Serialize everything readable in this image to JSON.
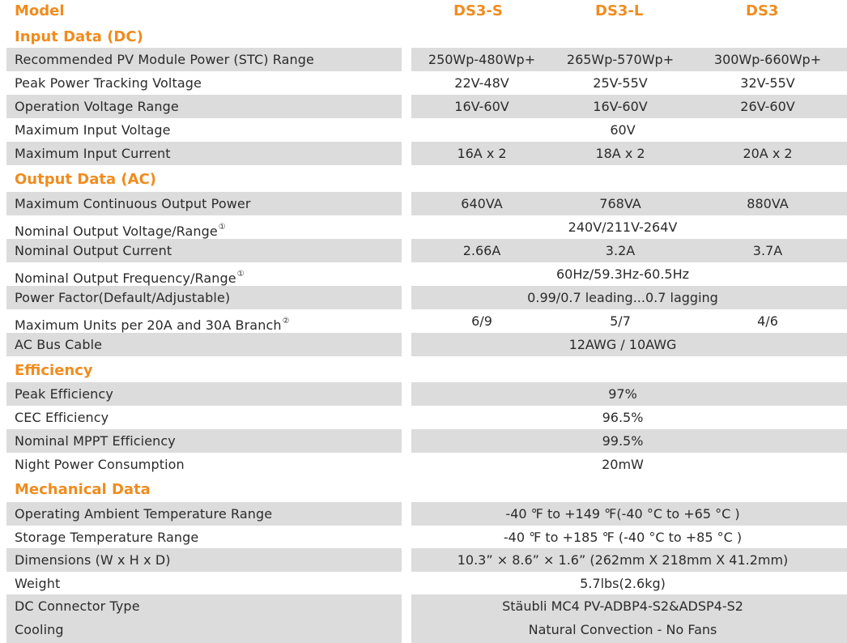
{
  "header": {
    "model_label": "Model",
    "models": [
      "DS3-S",
      "DS3-L",
      "DS3"
    ]
  },
  "sections": [
    {
      "title": "Input Data (DC)",
      "rows": [
        {
          "label": "Recommended PV Module Power (STC) Range",
          "values": [
            "250Wp-480Wp+",
            "265Wp-570Wp+",
            "300Wp-660Wp+"
          ]
        },
        {
          "label": "Peak Power Tracking Voltage",
          "values": [
            "22V-48V",
            "25V-55V",
            "32V-55V"
          ]
        },
        {
          "label": "Operation Voltage Range",
          "values": [
            "16V-60V",
            "16V-60V",
            "26V-60V"
          ]
        },
        {
          "label": "Maximum Input Voltage",
          "values": [
            "60V"
          ]
        },
        {
          "label": "Maximum Input Current",
          "values": [
            "16A x 2",
            "18A x 2",
            "20A x 2"
          ]
        }
      ]
    },
    {
      "title": "Output Data (AC)",
      "rows": [
        {
          "label": "Maximum Continuous Output Power",
          "values": [
            "640VA",
            "768VA",
            "880VA"
          ]
        },
        {
          "label": "Nominal Output Voltage/Range",
          "note": "①",
          "values": [
            "240V/211V-264V"
          ]
        },
        {
          "label": "Nominal Output Current",
          "values": [
            "2.66A",
            "3.2A",
            "3.7A"
          ]
        },
        {
          "label": "Nominal Output Frequency/Range",
          "note": "①",
          "values": [
            "60Hz/59.3Hz-60.5Hz"
          ]
        },
        {
          "label": "Power Factor(Default/Adjustable)",
          "values": [
            "0.99/0.7 leading...0.7 lagging"
          ]
        },
        {
          "label": "Maximum Units per 20A and 30A Branch",
          "note": "②",
          "values": [
            "6/9",
            "5/7",
            "4/6"
          ]
        },
        {
          "label": "AC Bus Cable",
          "values": [
            "12AWG / 10AWG"
          ]
        }
      ]
    },
    {
      "title": "Efficiency",
      "rows": [
        {
          "label": "Peak Efficiency",
          "values": [
            "97%"
          ]
        },
        {
          "label": "CEC Efficiency",
          "values": [
            "96.5%"
          ]
        },
        {
          "label": "Nominal MPPT Efficiency",
          "values": [
            "99.5%"
          ]
        },
        {
          "label": "Night Power Consumption",
          "values": [
            "20mW"
          ]
        }
      ]
    },
    {
      "title": "Mechanical Data",
      "rows": [
        {
          "label": "Operating Ambient Temperature Range",
          "values": [
            "-40 ℉ to +149 ℉(-40 °C to +65 °C )"
          ]
        },
        {
          "label": "Storage Temperature Range",
          "values": [
            "-40 ℉ to +185 ℉ (-40 °C to +85 °C )"
          ]
        },
        {
          "label": "Dimensions (W x H x D)",
          "values": [
            "10.3” × 8.6” × 1.6” (262mm X 218mm X 41.2mm)"
          ]
        },
        {
          "label": "Weight",
          "values": [
            "5.7lbs(2.6kg)"
          ]
        },
        {
          "label": "DC Connector Type",
          "values": [
            "Stäubli MC4 PV-ADBP4-S2&ADSP4-S2"
          ]
        },
        {
          "label": "Cooling",
          "values": [
            "Natural Convection - No Fans"
          ]
        }
      ]
    }
  ]
}
